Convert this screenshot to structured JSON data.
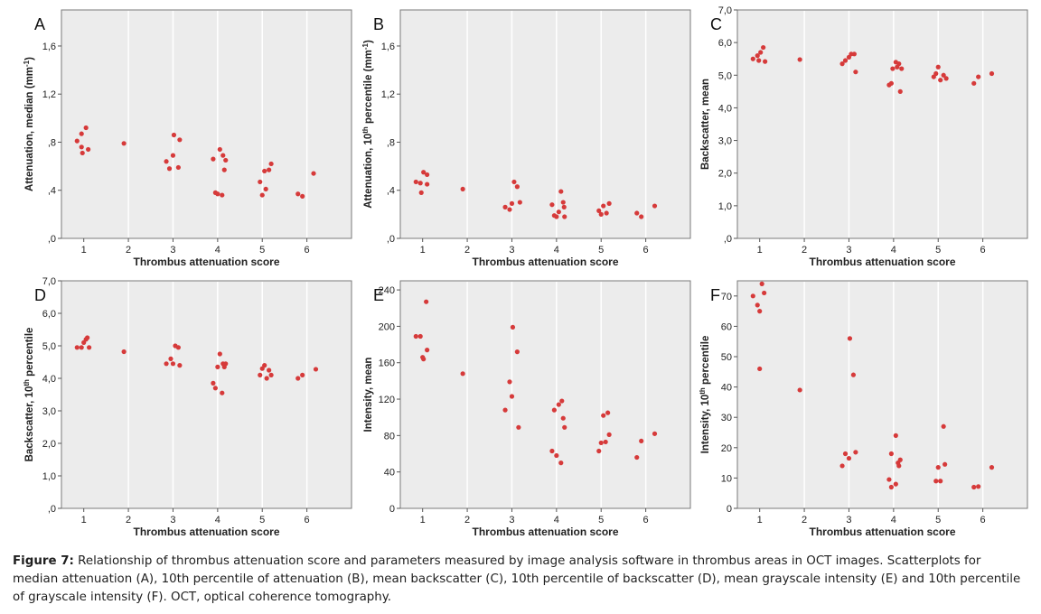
{
  "caption": {
    "label": "Figure 7:",
    "text": " Relationship of thrombus attenuation score and parameters measured by image analysis software in thrombus areas in OCT images. Scatterplots for median attenuation (A), 10th percentile of attenuation (B), mean backscatter (C), 10th percentile of backscatter (D), mean grayscale intensity (E) and 10th percentile of grayscale intensity (F). OCT, optical coherence tomography."
  },
  "colors": {
    "point": "#d63a3a",
    "panel_background": "#ececec",
    "grid_vertical": "#ffffff"
  },
  "chart_data": [
    {
      "id": "A",
      "letter": "A",
      "type": "scatter",
      "xlabel": "Thrombus attenuation score",
      "ylabel": {
        "parts": [
          {
            "t": "Attenuation, median (mm"
          },
          {
            "t": "-1",
            "sup": true
          },
          {
            "t": ")"
          }
        ]
      },
      "xlim": [
        0.5,
        7.0
      ],
      "ylim": [
        0,
        1.9
      ],
      "xticks": [
        1,
        2,
        3,
        4,
        5,
        6
      ],
      "yticks": [
        0,
        0.4,
        0.8,
        1.2,
        1.6
      ],
      "ytick_labels": [
        ",0",
        ",4",
        ",8",
        "1,2",
        "1,6"
      ],
      "points": [
        [
          0.85,
          0.81
        ],
        [
          0.95,
          0.87
        ],
        [
          1.05,
          0.92
        ],
        [
          0.95,
          0.76
        ],
        [
          1.1,
          0.74
        ],
        [
          0.97,
          0.71
        ],
        [
          1.9,
          0.79
        ],
        [
          2.85,
          0.64
        ],
        [
          2.92,
          0.58
        ],
        [
          3.0,
          0.69
        ],
        [
          3.02,
          0.86
        ],
        [
          3.15,
          0.82
        ],
        [
          3.12,
          0.59
        ],
        [
          3.9,
          0.66
        ],
        [
          3.95,
          0.38
        ],
        [
          4.0,
          0.37
        ],
        [
          4.05,
          0.74
        ],
        [
          4.1,
          0.36
        ],
        [
          4.12,
          0.69
        ],
        [
          4.18,
          0.65
        ],
        [
          4.15,
          0.57
        ],
        [
          4.95,
          0.47
        ],
        [
          5.0,
          0.36
        ],
        [
          5.05,
          0.56
        ],
        [
          5.08,
          0.41
        ],
        [
          5.15,
          0.57
        ],
        [
          5.2,
          0.62
        ],
        [
          5.8,
          0.37
        ],
        [
          5.9,
          0.35
        ],
        [
          6.15,
          0.54
        ]
      ]
    },
    {
      "id": "B",
      "letter": "B",
      "type": "scatter",
      "xlabel": "Thrombus attenuation score",
      "ylabel": {
        "parts": [
          {
            "t": "Attenuation, 10"
          },
          {
            "t": "th",
            "sup": true
          },
          {
            "t": " percentile (mm"
          },
          {
            "t": "-1",
            "sup": true
          },
          {
            "t": ")"
          }
        ]
      },
      "xlim": [
        0.5,
        7.0
      ],
      "ylim": [
        0,
        1.9
      ],
      "xticks": [
        1,
        2,
        3,
        4,
        5,
        6
      ],
      "yticks": [
        0,
        0.4,
        0.8,
        1.2,
        1.6
      ],
      "ytick_labels": [
        ",0",
        ",4",
        ",8",
        "1,2",
        "1,6"
      ],
      "points": [
        [
          0.85,
          0.47
        ],
        [
          0.95,
          0.46
        ],
        [
          1.02,
          0.55
        ],
        [
          1.1,
          0.53
        ],
        [
          1.1,
          0.45
        ],
        [
          0.97,
          0.38
        ],
        [
          1.9,
          0.41
        ],
        [
          2.85,
          0.26
        ],
        [
          2.95,
          0.24
        ],
        [
          3.0,
          0.29
        ],
        [
          3.05,
          0.47
        ],
        [
          3.12,
          0.43
        ],
        [
          3.18,
          0.3
        ],
        [
          3.9,
          0.28
        ],
        [
          3.95,
          0.19
        ],
        [
          4.0,
          0.18
        ],
        [
          4.05,
          0.22
        ],
        [
          4.1,
          0.39
        ],
        [
          4.15,
          0.3
        ],
        [
          4.18,
          0.18
        ],
        [
          4.17,
          0.26
        ],
        [
          4.95,
          0.23
        ],
        [
          5.0,
          0.2
        ],
        [
          5.05,
          0.27
        ],
        [
          5.12,
          0.21
        ],
        [
          5.18,
          0.29
        ],
        [
          5.8,
          0.21
        ],
        [
          5.9,
          0.18
        ],
        [
          6.2,
          0.27
        ]
      ]
    },
    {
      "id": "C",
      "letter": "C",
      "type": "scatter",
      "xlabel": "Thrombus attenuation score",
      "ylabel": {
        "parts": [
          {
            "t": "Backscatter, mean"
          }
        ]
      },
      "xlim": [
        0.5,
        7.0
      ],
      "ylim": [
        0,
        7.0
      ],
      "xticks": [
        1,
        2,
        3,
        4,
        5,
        6
      ],
      "yticks": [
        0,
        1,
        2,
        3,
        4,
        5,
        6,
        7
      ],
      "ytick_labels": [
        ",0",
        "1,0",
        "2,0",
        "3,0",
        "4,0",
        "5,0",
        "6,0",
        "7,0"
      ],
      "points": [
        [
          0.85,
          5.5
        ],
        [
          0.95,
          5.6
        ],
        [
          0.98,
          5.45
        ],
        [
          1.02,
          5.7
        ],
        [
          1.08,
          5.85
        ],
        [
          1.12,
          5.42
        ],
        [
          1.9,
          5.48
        ],
        [
          2.85,
          5.35
        ],
        [
          2.92,
          5.45
        ],
        [
          3.0,
          5.55
        ],
        [
          3.05,
          5.65
        ],
        [
          3.12,
          5.65
        ],
        [
          3.15,
          5.1
        ],
        [
          3.9,
          4.7
        ],
        [
          3.95,
          4.75
        ],
        [
          3.98,
          5.2
        ],
        [
          4.05,
          5.4
        ],
        [
          4.08,
          5.25
        ],
        [
          4.12,
          5.35
        ],
        [
          4.15,
          4.5
        ],
        [
          4.18,
          5.2
        ],
        [
          4.9,
          4.95
        ],
        [
          4.95,
          5.05
        ],
        [
          5.0,
          5.25
        ],
        [
          5.05,
          4.85
        ],
        [
          5.12,
          5.0
        ],
        [
          5.18,
          4.9
        ],
        [
          5.8,
          4.75
        ],
        [
          5.9,
          4.95
        ],
        [
          6.2,
          5.05
        ]
      ]
    },
    {
      "id": "D",
      "letter": "D",
      "type": "scatter",
      "xlabel": "Thrombus attenuation score",
      "ylabel": {
        "parts": [
          {
            "t": "Backscatter,  10"
          },
          {
            "t": "th",
            "sup": true
          },
          {
            "t": " percentile"
          }
        ]
      },
      "xlim": [
        0.5,
        7.0
      ],
      "ylim": [
        0,
        7.0
      ],
      "xticks": [
        1,
        2,
        3,
        4,
        5,
        6
      ],
      "yticks": [
        0,
        1,
        2,
        3,
        4,
        5,
        6,
        7
      ],
      "ytick_labels": [
        ",0",
        "1,0",
        "2,0",
        "3,0",
        "4,0",
        "5,0",
        "6,0",
        "7,0"
      ],
      "points": [
        [
          0.85,
          4.95
        ],
        [
          0.95,
          4.95
        ],
        [
          1.0,
          5.1
        ],
        [
          1.05,
          5.2
        ],
        [
          1.08,
          5.25
        ],
        [
          1.12,
          4.95
        ],
        [
          1.9,
          4.82
        ],
        [
          2.85,
          4.45
        ],
        [
          2.95,
          4.6
        ],
        [
          3.0,
          4.45
        ],
        [
          3.05,
          5.0
        ],
        [
          3.12,
          4.95
        ],
        [
          3.15,
          4.4
        ],
        [
          3.9,
          3.85
        ],
        [
          3.95,
          3.7
        ],
        [
          4.0,
          4.35
        ],
        [
          4.05,
          4.75
        ],
        [
          4.1,
          3.55
        ],
        [
          4.12,
          4.45
        ],
        [
          4.15,
          4.35
        ],
        [
          4.18,
          4.45
        ],
        [
          4.95,
          4.1
        ],
        [
          5.0,
          4.3
        ],
        [
          5.05,
          4.4
        ],
        [
          5.1,
          4.0
        ],
        [
          5.15,
          4.25
        ],
        [
          5.2,
          4.1
        ],
        [
          5.8,
          4.0
        ],
        [
          5.9,
          4.1
        ],
        [
          6.2,
          4.28
        ]
      ]
    },
    {
      "id": "E",
      "letter": "E",
      "type": "scatter",
      "xlabel": "Thrombus attenuation score",
      "ylabel": {
        "parts": [
          {
            "t": "Intensity, mean"
          }
        ]
      },
      "xlim": [
        0.5,
        7.0
      ],
      "ylim": [
        0,
        250
      ],
      "xticks": [
        1,
        2,
        3,
        4,
        5,
        6
      ],
      "yticks": [
        0,
        40,
        80,
        120,
        160,
        200,
        240
      ],
      "ytick_labels": [
        "0",
        "40",
        "80",
        "120",
        "160",
        "200",
        "240"
      ],
      "points": [
        [
          0.85,
          189
        ],
        [
          0.95,
          189
        ],
        [
          1.0,
          166
        ],
        [
          1.02,
          164
        ],
        [
          1.08,
          227
        ],
        [
          1.1,
          174
        ],
        [
          1.9,
          148
        ],
        [
          2.85,
          108
        ],
        [
          2.95,
          139
        ],
        [
          3.0,
          123
        ],
        [
          3.02,
          199
        ],
        [
          3.12,
          172
        ],
        [
          3.15,
          89
        ],
        [
          3.9,
          63
        ],
        [
          3.95,
          108
        ],
        [
          4.0,
          58
        ],
        [
          4.05,
          114
        ],
        [
          4.1,
          50
        ],
        [
          4.12,
          118
        ],
        [
          4.15,
          99
        ],
        [
          4.18,
          89
        ],
        [
          4.95,
          63
        ],
        [
          5.0,
          72
        ],
        [
          5.05,
          102
        ],
        [
          5.1,
          73
        ],
        [
          5.15,
          105
        ],
        [
          5.18,
          81
        ],
        [
          5.8,
          56
        ],
        [
          5.9,
          74
        ],
        [
          6.2,
          82
        ]
      ]
    },
    {
      "id": "F",
      "letter": "F",
      "type": "scatter",
      "xlabel": "Thrombus attenuation score",
      "ylabel": {
        "parts": [
          {
            "t": "Intensity, 10"
          },
          {
            "t": "th",
            "sup": true
          },
          {
            "t": " percentile"
          }
        ]
      },
      "xlim": [
        0.5,
        7.0
      ],
      "ylim": [
        0,
        75
      ],
      "xticks": [
        1,
        2,
        3,
        4,
        5,
        6
      ],
      "yticks": [
        0,
        10,
        20,
        30,
        40,
        50,
        60,
        70
      ],
      "ytick_labels": [
        "0",
        "10",
        "20",
        "30",
        "40",
        "50",
        "60",
        "70"
      ],
      "points": [
        [
          0.85,
          70
        ],
        [
          0.95,
          67
        ],
        [
          1.0,
          65
        ],
        [
          1.0,
          46
        ],
        [
          1.05,
          74
        ],
        [
          1.1,
          71
        ],
        [
          1.9,
          39
        ],
        [
          2.85,
          14
        ],
        [
          2.92,
          18
        ],
        [
          3.0,
          16.5
        ],
        [
          3.02,
          56
        ],
        [
          3.1,
          44
        ],
        [
          3.15,
          18.5
        ],
        [
          3.9,
          9.5
        ],
        [
          3.95,
          7
        ],
        [
          3.95,
          18
        ],
        [
          4.05,
          24
        ],
        [
          4.05,
          8
        ],
        [
          4.1,
          15
        ],
        [
          4.12,
          14
        ],
        [
          4.15,
          16
        ],
        [
          4.95,
          9
        ],
        [
          5.0,
          13.5
        ],
        [
          5.05,
          9
        ],
        [
          5.12,
          27
        ],
        [
          5.15,
          14.5
        ],
        [
          5.8,
          7
        ],
        [
          5.9,
          7.2
        ],
        [
          6.2,
          13.5
        ]
      ]
    }
  ]
}
